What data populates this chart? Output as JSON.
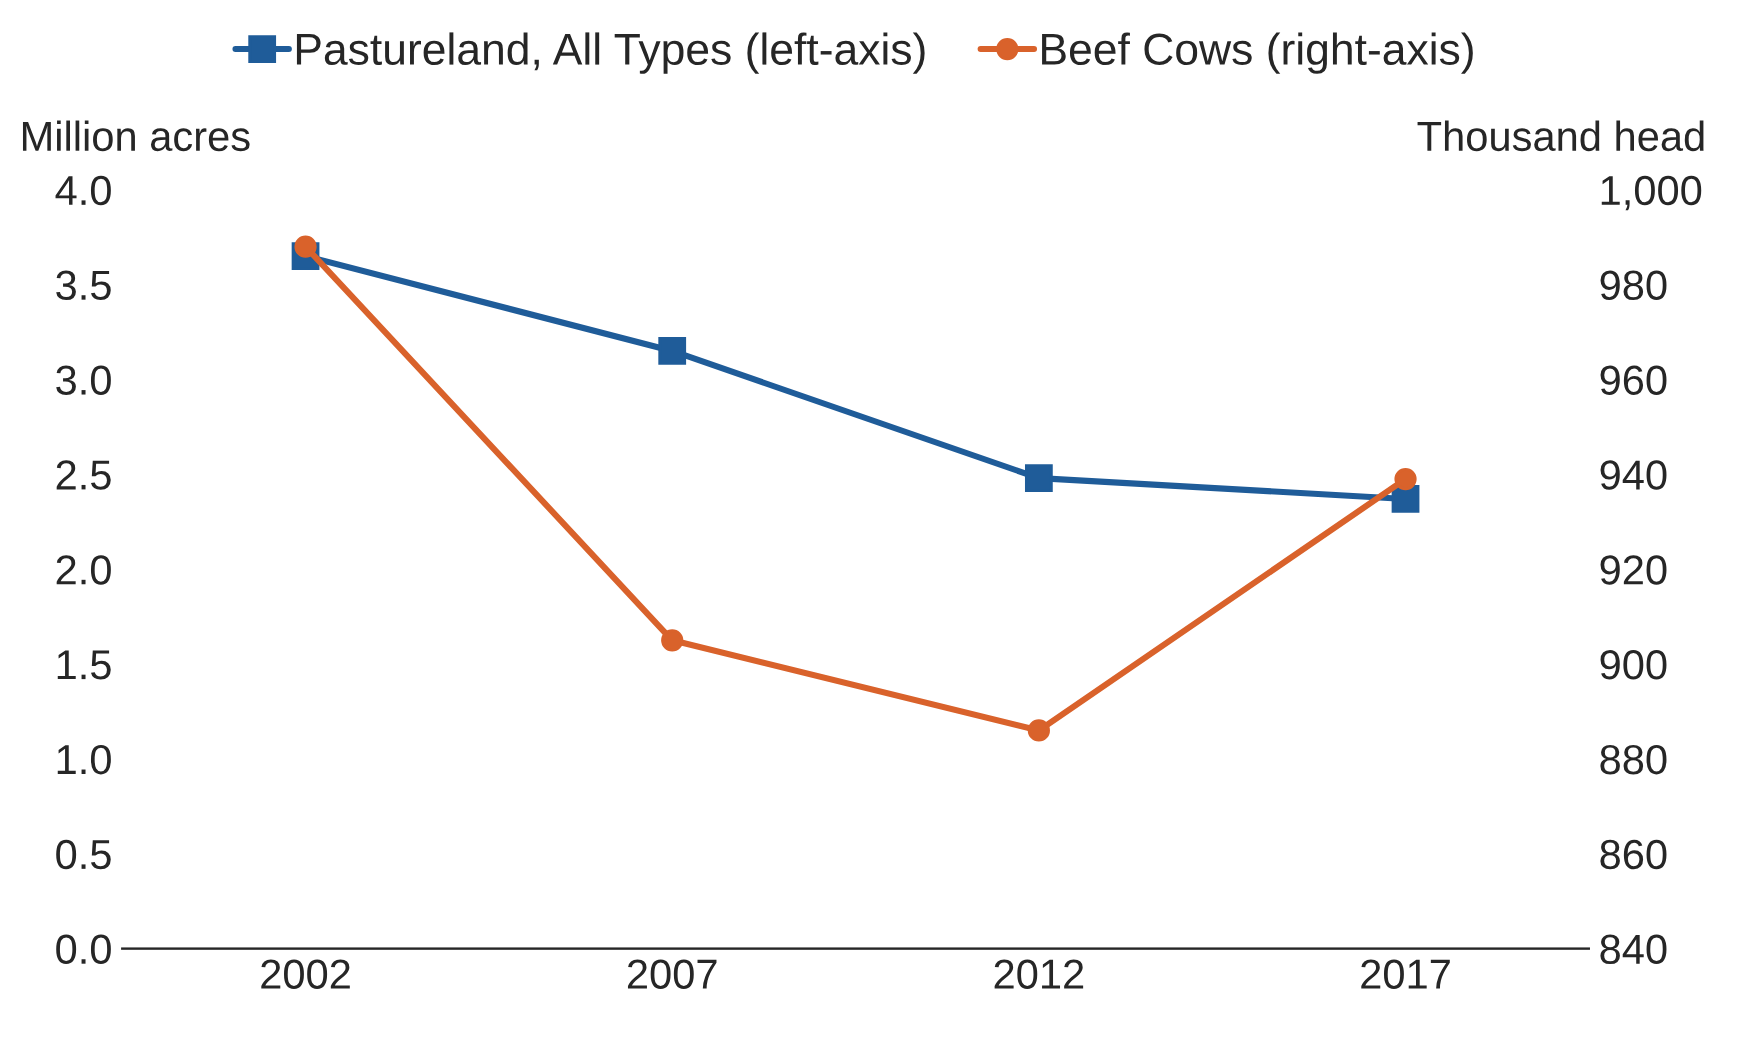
{
  "chart_data": {
    "type": "line",
    "categories": [
      "2002",
      "2007",
      "2012",
      "2017"
    ],
    "series": [
      {
        "name": "Pastureland, All Types (left-axis)",
        "color": "#1f5c99",
        "marker": "square",
        "values": [
          3.65,
          3.15,
          2.48,
          2.37
        ]
      },
      {
        "name": "Beef Cows (right-axis)",
        "color": "#d9622b",
        "marker": "circle",
        "axis": "y2",
        "values": [
          988,
          905,
          886,
          939
        ]
      }
    ],
    "ylabel": "Million acres",
    "y2label": "Thousand head",
    "ylim": [
      0,
      4
    ],
    "yticks": [
      {
        "value": 0,
        "label": "0.0"
      },
      {
        "value": 0.5,
        "label": "0.5"
      },
      {
        "value": 1,
        "label": "1.0"
      },
      {
        "value": 1.5,
        "label": "1.5"
      },
      {
        "value": 2,
        "label": "2.0"
      },
      {
        "value": 2.5,
        "label": "2.5"
      },
      {
        "value": 3,
        "label": "3.0"
      },
      {
        "value": 3.5,
        "label": "3.5"
      },
      {
        "value": 4,
        "label": "4.0"
      }
    ],
    "y2lim": [
      840,
      1000
    ],
    "y2ticks": [
      840,
      860,
      880,
      900,
      920,
      940,
      960,
      980,
      {
        "value": 1000,
        "label": "1,000"
      }
    ],
    "legend": "top",
    "grid": false,
    "line_style": "solid"
  }
}
